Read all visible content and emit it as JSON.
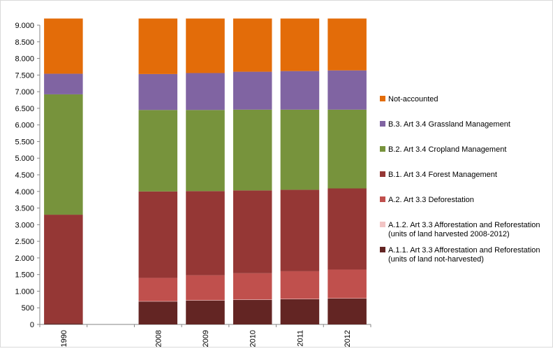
{
  "chart_data": {
    "type": "bar",
    "stacked": true,
    "title": "",
    "xlabel": "",
    "ylabel": "",
    "ylim": [
      0,
      9000
    ],
    "yticks": [
      0,
      500,
      1000,
      1500,
      2000,
      2500,
      3000,
      3500,
      4000,
      4500,
      5000,
      5500,
      6000,
      6500,
      7000,
      7500,
      8000,
      8500,
      9000
    ],
    "ytick_labels": [
      "0",
      "500",
      "1.000",
      "1.500",
      "2.000",
      "2.500",
      "3.000",
      "3.500",
      "4.000",
      "4.500",
      "5.000",
      "5.500",
      "6.000",
      "6.500",
      "7.000",
      "7.500",
      "8.000",
      "8.500",
      "9.000"
    ],
    "categories": [
      "1990",
      "",
      "2008",
      "2009",
      "2010",
      "2011",
      "2012"
    ],
    "gridlines": false,
    "legend_position": "right",
    "series": [
      {
        "name": "A.1.1. Art 3.3 Afforestation and Reforestation (units of land not-harvested)",
        "legend_lines": [
          "A.1.1. Art 3.3 Afforestation and Reforestation",
          "(units of land not-harvested)"
        ],
        "color": "#632523",
        "values": [
          30,
          null,
          690,
          720,
          740,
          760,
          780
        ]
      },
      {
        "name": "A.1.2. Art 3.3 Afforestation and Reforestation (units of land harvested 2008-2012)",
        "legend_lines": [
          "A.1.2. Art 3.3 Afforestation and Reforestation",
          "(units of land harvested 2008-2012)"
        ],
        "color": "#f2c4c4",
        "values": [
          0,
          null,
          10,
          10,
          10,
          10,
          10
        ]
      },
      {
        "name": "A.2. Art 3.3 Deforestation",
        "legend_lines": [
          "A.2. Art 3.3 Deforestation"
        ],
        "color": "#c0504d",
        "values": [
          0,
          null,
          700,
          750,
          790,
          830,
          860
        ]
      },
      {
        "name": "B.1. Art 3.4 Forest Management",
        "legend_lines": [
          "B.1. Art 3.4 Forest Management"
        ],
        "color": "#953735",
        "values": [
          3270,
          null,
          2600,
          2530,
          2490,
          2450,
          2440
        ]
      },
      {
        "name": "B.2. Art 3.4 Cropland Management",
        "legend_lines": [
          "B.2. Art 3.4 Cropland Management"
        ],
        "color": "#77933c",
        "values": [
          3620,
          null,
          2450,
          2440,
          2430,
          2410,
          2370
        ]
      },
      {
        "name": "B.3. Art 3.4 Grassland Management",
        "legend_lines": [
          "B.3. Art 3.4 Grassland Management"
        ],
        "color": "#8064a2",
        "values": [
          620,
          null,
          1080,
          1110,
          1140,
          1160,
          1180
        ]
      },
      {
        "name": "Not-accounted",
        "legend_lines": [
          "Not-accounted"
        ],
        "color": "#e36c09",
        "values": [
          1660,
          null,
          1670,
          1640,
          1600,
          1580,
          1560
        ]
      }
    ]
  }
}
